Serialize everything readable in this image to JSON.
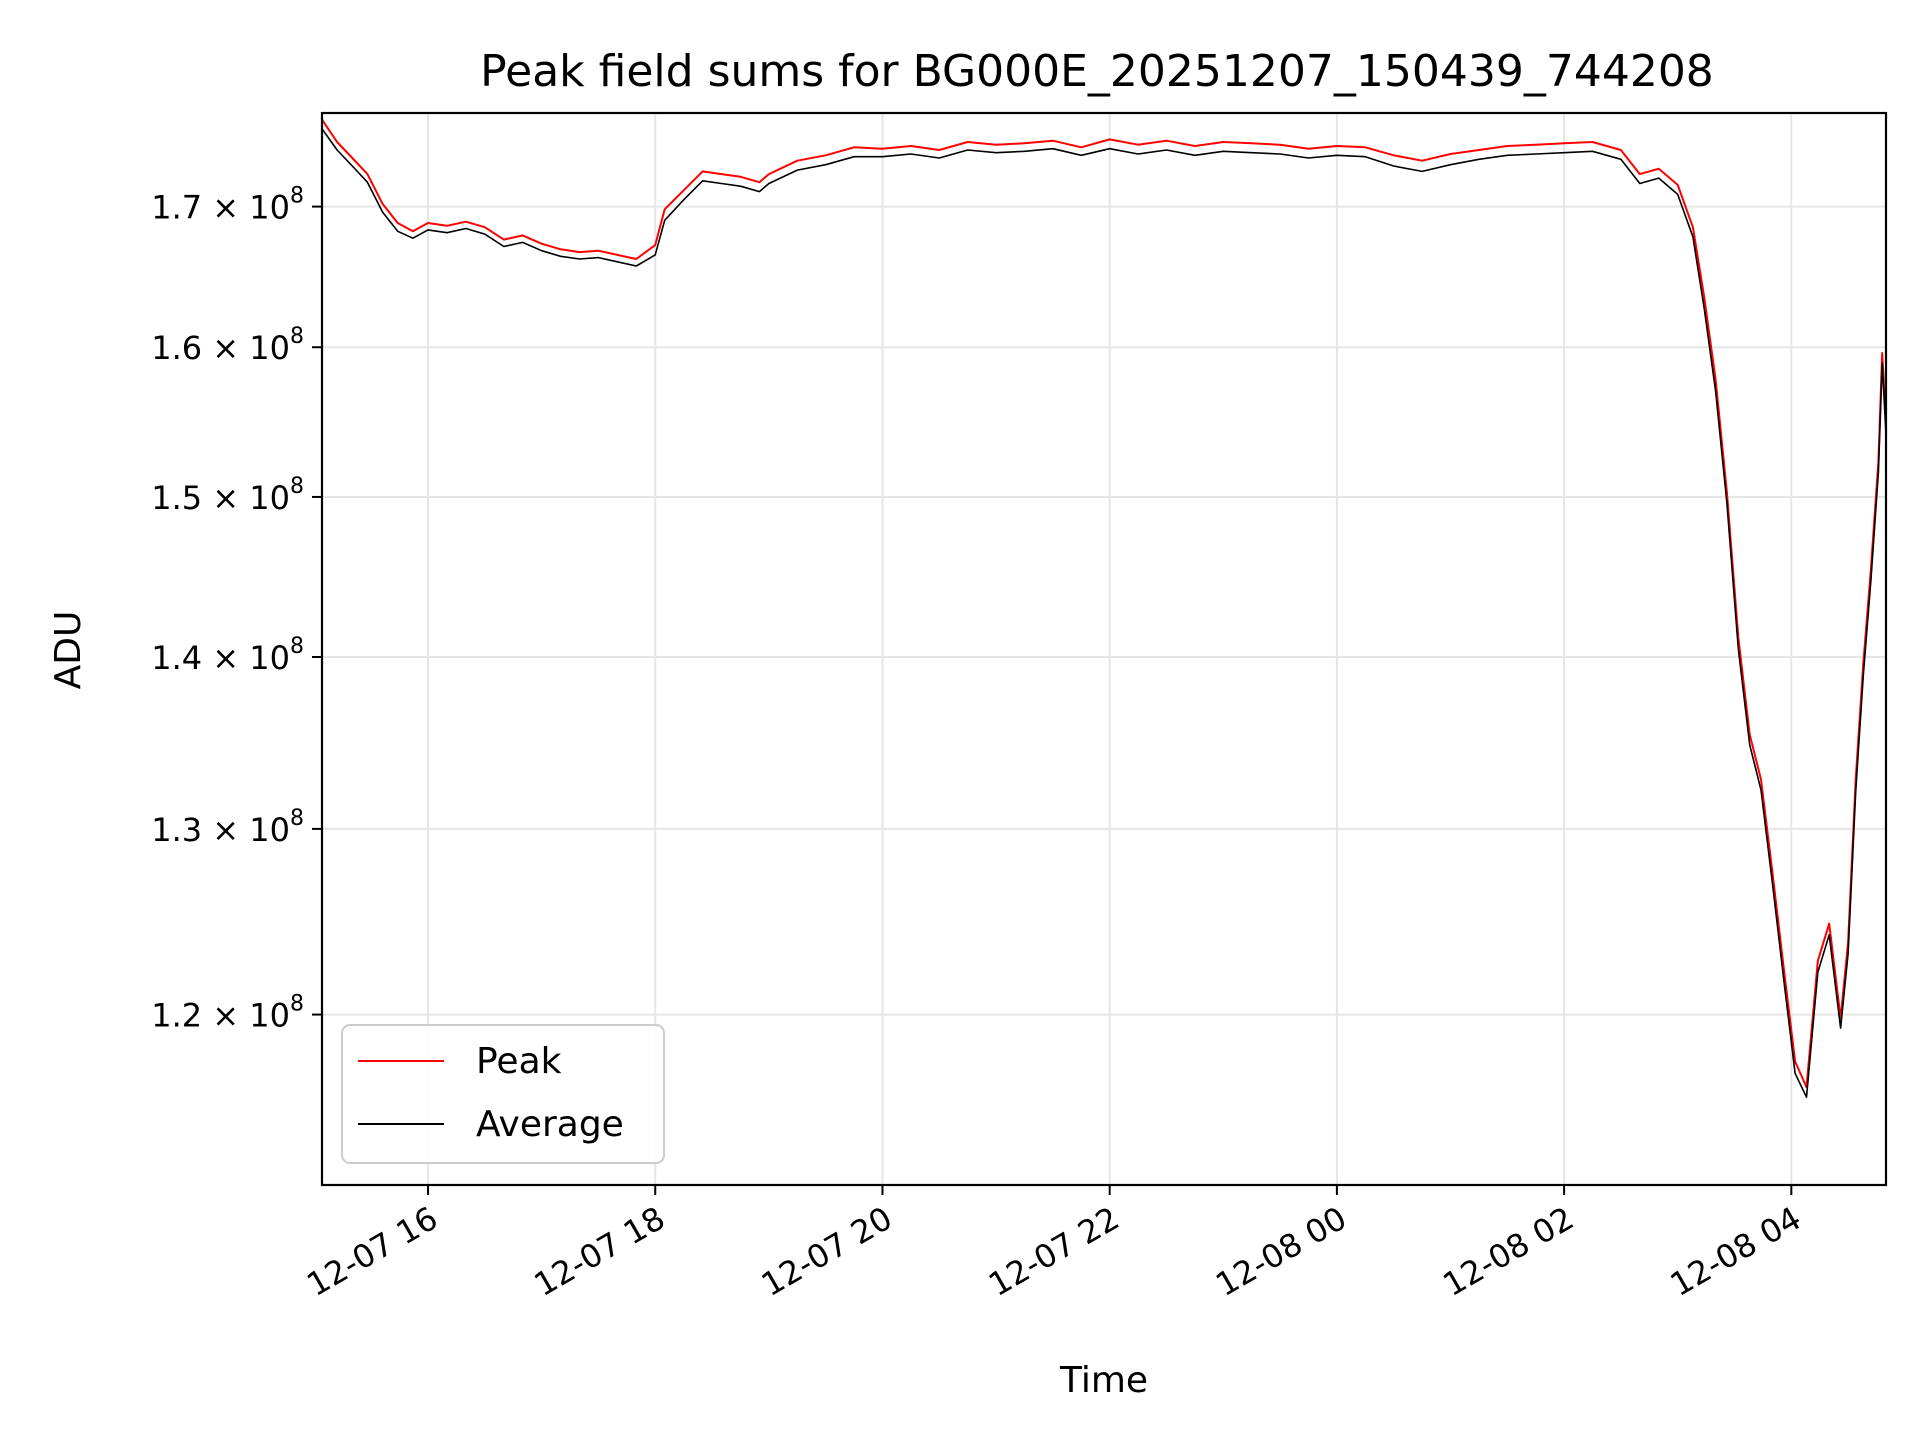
{
  "chart_data": {
    "type": "line",
    "title": "Peak field sums for BG000E_20251207_150439_744208",
    "xlabel": "Time",
    "ylabel": "ADU",
    "yscale": "log",
    "xlim": [
      "2025-12-07 15:04",
      "2025-12-08 04:50"
    ],
    "ylim": [
      111500000,
      177000000
    ],
    "grid": true,
    "legend_position": "lower-left",
    "x_ticks": [
      {
        "t": "2025-12-07 16:00",
        "label": "12-07 16"
      },
      {
        "t": "2025-12-07 18:00",
        "label": "12-07 18"
      },
      {
        "t": "2025-12-07 20:00",
        "label": "12-07 20"
      },
      {
        "t": "2025-12-07 22:00",
        "label": "12-07 22"
      },
      {
        "t": "2025-12-08 00:00",
        "label": "12-08 00"
      },
      {
        "t": "2025-12-08 02:00",
        "label": "12-08 02"
      },
      {
        "t": "2025-12-08 04:00",
        "label": "12-08 04"
      }
    ],
    "y_ticks": [
      {
        "value": 120000000,
        "mantissa": "1.2",
        "exp": "8"
      },
      {
        "value": 130000000,
        "mantissa": "1.3",
        "exp": "8"
      },
      {
        "value": 140000000,
        "mantissa": "1.4",
        "exp": "8"
      },
      {
        "value": 150000000,
        "mantissa": "1.5",
        "exp": "8"
      },
      {
        "value": 160000000,
        "mantissa": "1.6",
        "exp": "8"
      },
      {
        "value": 170000000,
        "mantissa": "1.7",
        "exp": "8"
      }
    ],
    "series": [
      {
        "name": "Peak",
        "color": "#ff0000",
        "points": [
          [
            "2025-12-07 15:04",
            176500000
          ],
          [
            "2025-12-07 15:12",
            174800000
          ],
          [
            "2025-12-07 15:20",
            173600000
          ],
          [
            "2025-12-07 15:28",
            172400000
          ],
          [
            "2025-12-07 15:36",
            170200000
          ],
          [
            "2025-12-07 15:44",
            168800000
          ],
          [
            "2025-12-07 15:52",
            168200000
          ],
          [
            "2025-12-07 16:00",
            168800000
          ],
          [
            "2025-12-07 16:10",
            168600000
          ],
          [
            "2025-12-07 16:20",
            168900000
          ],
          [
            "2025-12-07 16:30",
            168500000
          ],
          [
            "2025-12-07 16:40",
            167600000
          ],
          [
            "2025-12-07 16:50",
            167900000
          ],
          [
            "2025-12-07 17:00",
            167300000
          ],
          [
            "2025-12-07 17:10",
            166900000
          ],
          [
            "2025-12-07 17:20",
            166700000
          ],
          [
            "2025-12-07 17:30",
            166800000
          ],
          [
            "2025-12-07 17:40",
            166500000
          ],
          [
            "2025-12-07 17:50",
            166200000
          ],
          [
            "2025-12-07 18:00",
            167200000
          ],
          [
            "2025-12-07 18:05",
            169800000
          ],
          [
            "2025-12-07 18:15",
            171200000
          ],
          [
            "2025-12-07 18:25",
            172600000
          ],
          [
            "2025-12-07 18:35",
            172400000
          ],
          [
            "2025-12-07 18:45",
            172200000
          ],
          [
            "2025-12-07 18:55",
            171800000
          ],
          [
            "2025-12-07 19:00",
            172400000
          ],
          [
            "2025-12-07 19:15",
            173400000
          ],
          [
            "2025-12-07 19:30",
            173800000
          ],
          [
            "2025-12-07 19:45",
            174400000
          ],
          [
            "2025-12-07 20:00",
            174300000
          ],
          [
            "2025-12-07 20:15",
            174500000
          ],
          [
            "2025-12-07 20:30",
            174200000
          ],
          [
            "2025-12-07 20:45",
            174800000
          ],
          [
            "2025-12-07 21:00",
            174600000
          ],
          [
            "2025-12-07 21:15",
            174700000
          ],
          [
            "2025-12-07 21:30",
            174900000
          ],
          [
            "2025-12-07 21:45",
            174400000
          ],
          [
            "2025-12-07 22:00",
            175000000
          ],
          [
            "2025-12-07 22:15",
            174600000
          ],
          [
            "2025-12-07 22:30",
            174900000
          ],
          [
            "2025-12-07 22:45",
            174500000
          ],
          [
            "2025-12-07 23:00",
            174800000
          ],
          [
            "2025-12-07 23:15",
            174700000
          ],
          [
            "2025-12-07 23:30",
            174600000
          ],
          [
            "2025-12-07 23:45",
            174300000
          ],
          [
            "2025-12-08 00:00",
            174500000
          ],
          [
            "2025-12-08 00:15",
            174400000
          ],
          [
            "2025-12-08 00:30",
            173800000
          ],
          [
            "2025-12-08 00:45",
            173400000
          ],
          [
            "2025-12-08 01:00",
            173900000
          ],
          [
            "2025-12-08 01:15",
            174200000
          ],
          [
            "2025-12-08 01:30",
            174500000
          ],
          [
            "2025-12-08 01:45",
            174600000
          ],
          [
            "2025-12-08 02:00",
            174700000
          ],
          [
            "2025-12-08 02:15",
            174800000
          ],
          [
            "2025-12-08 02:30",
            174200000
          ],
          [
            "2025-12-08 02:40",
            172400000
          ],
          [
            "2025-12-08 02:50",
            172800000
          ],
          [
            "2025-12-08 03:00",
            171600000
          ],
          [
            "2025-12-08 03:08",
            168500000
          ],
          [
            "2025-12-08 03:14",
            163500000
          ],
          [
            "2025-12-08 03:20",
            157800000
          ],
          [
            "2025-12-08 03:26",
            150300000
          ],
          [
            "2025-12-08 03:32",
            141200000
          ],
          [
            "2025-12-08 03:38",
            135400000
          ],
          [
            "2025-12-08 03:44",
            132800000
          ],
          [
            "2025-12-08 03:50",
            127600000
          ],
          [
            "2025-12-08 03:56",
            122400000
          ],
          [
            "2025-12-08 04:02",
            117600000
          ],
          [
            "2025-12-08 04:08",
            116300000
          ],
          [
            "2025-12-08 04:14",
            122800000
          ],
          [
            "2025-12-08 04:20",
            124800000
          ],
          [
            "2025-12-08 04:26",
            119800000
          ],
          [
            "2025-12-08 04:30",
            123800000
          ],
          [
            "2025-12-08 04:34",
            132800000
          ],
          [
            "2025-12-08 04:38",
            139600000
          ],
          [
            "2025-12-08 04:42",
            145400000
          ],
          [
            "2025-12-08 04:46",
            152300000
          ],
          [
            "2025-12-08 04:48",
            159600000
          ],
          [
            "2025-12-08 04:50",
            154800000
          ]
        ]
      },
      {
        "name": "Average",
        "color": "#000000",
        "points": [
          [
            "2025-12-07 15:04",
            175800000
          ],
          [
            "2025-12-07 15:12",
            174200000
          ],
          [
            "2025-12-07 15:20",
            173000000
          ],
          [
            "2025-12-07 15:28",
            171800000
          ],
          [
            "2025-12-07 15:36",
            169600000
          ],
          [
            "2025-12-07 15:44",
            168200000
          ],
          [
            "2025-12-07 15:52",
            167700000
          ],
          [
            "2025-12-07 16:00",
            168300000
          ],
          [
            "2025-12-07 16:10",
            168100000
          ],
          [
            "2025-12-07 16:20",
            168400000
          ],
          [
            "2025-12-07 16:30",
            168000000
          ],
          [
            "2025-12-07 16:40",
            167100000
          ],
          [
            "2025-12-07 16:50",
            167400000
          ],
          [
            "2025-12-07 17:00",
            166800000
          ],
          [
            "2025-12-07 17:10",
            166400000
          ],
          [
            "2025-12-07 17:20",
            166200000
          ],
          [
            "2025-12-07 17:30",
            166300000
          ],
          [
            "2025-12-07 17:40",
            166000000
          ],
          [
            "2025-12-07 17:50",
            165700000
          ],
          [
            "2025-12-07 18:00",
            166500000
          ],
          [
            "2025-12-07 18:05",
            169000000
          ],
          [
            "2025-12-07 18:15",
            170500000
          ],
          [
            "2025-12-07 18:25",
            171900000
          ],
          [
            "2025-12-07 18:35",
            171700000
          ],
          [
            "2025-12-07 18:45",
            171500000
          ],
          [
            "2025-12-07 18:55",
            171100000
          ],
          [
            "2025-12-07 19:00",
            171700000
          ],
          [
            "2025-12-07 19:15",
            172700000
          ],
          [
            "2025-12-07 19:30",
            173100000
          ],
          [
            "2025-12-07 19:45",
            173700000
          ],
          [
            "2025-12-07 20:00",
            173700000
          ],
          [
            "2025-12-07 20:15",
            173900000
          ],
          [
            "2025-12-07 20:30",
            173600000
          ],
          [
            "2025-12-07 20:45",
            174200000
          ],
          [
            "2025-12-07 21:00",
            174000000
          ],
          [
            "2025-12-07 21:15",
            174100000
          ],
          [
            "2025-12-07 21:30",
            174300000
          ],
          [
            "2025-12-07 21:45",
            173800000
          ],
          [
            "2025-12-07 22:00",
            174300000
          ],
          [
            "2025-12-07 22:15",
            173900000
          ],
          [
            "2025-12-07 22:30",
            174200000
          ],
          [
            "2025-12-07 22:45",
            173800000
          ],
          [
            "2025-12-07 23:00",
            174100000
          ],
          [
            "2025-12-07 23:15",
            174000000
          ],
          [
            "2025-12-07 23:30",
            173900000
          ],
          [
            "2025-12-07 23:45",
            173600000
          ],
          [
            "2025-12-08 00:00",
            173800000
          ],
          [
            "2025-12-08 00:15",
            173700000
          ],
          [
            "2025-12-08 00:30",
            173000000
          ],
          [
            "2025-12-08 00:45",
            172600000
          ],
          [
            "2025-12-08 01:00",
            173100000
          ],
          [
            "2025-12-08 01:15",
            173500000
          ],
          [
            "2025-12-08 01:30",
            173800000
          ],
          [
            "2025-12-08 01:45",
            173900000
          ],
          [
            "2025-12-08 02:00",
            174000000
          ],
          [
            "2025-12-08 02:15",
            174100000
          ],
          [
            "2025-12-08 02:30",
            173500000
          ],
          [
            "2025-12-08 02:40",
            171700000
          ],
          [
            "2025-12-08 02:50",
            172100000
          ],
          [
            "2025-12-08 03:00",
            170900000
          ],
          [
            "2025-12-08 03:08",
            167800000
          ],
          [
            "2025-12-08 03:14",
            162700000
          ],
          [
            "2025-12-08 03:20",
            157000000
          ],
          [
            "2025-12-08 03:26",
            149600000
          ],
          [
            "2025-12-08 03:32",
            140500000
          ],
          [
            "2025-12-08 03:38",
            134800000
          ],
          [
            "2025-12-08 03:44",
            132200000
          ],
          [
            "2025-12-08 03:50",
            127000000
          ],
          [
            "2025-12-08 03:56",
            121800000
          ],
          [
            "2025-12-08 04:02",
            117000000
          ],
          [
            "2025-12-08 04:08",
            115800000
          ],
          [
            "2025-12-08 04:14",
            122200000
          ],
          [
            "2025-12-08 04:20",
            124200000
          ],
          [
            "2025-12-08 04:26",
            119300000
          ],
          [
            "2025-12-08 04:30",
            123200000
          ],
          [
            "2025-12-08 04:34",
            132100000
          ],
          [
            "2025-12-08 04:38",
            138900000
          ],
          [
            "2025-12-08 04:42",
            144700000
          ],
          [
            "2025-12-08 04:46",
            151600000
          ],
          [
            "2025-12-08 04:48",
            158900000
          ],
          [
            "2025-12-08 04:50",
            154100000
          ]
        ]
      }
    ]
  }
}
